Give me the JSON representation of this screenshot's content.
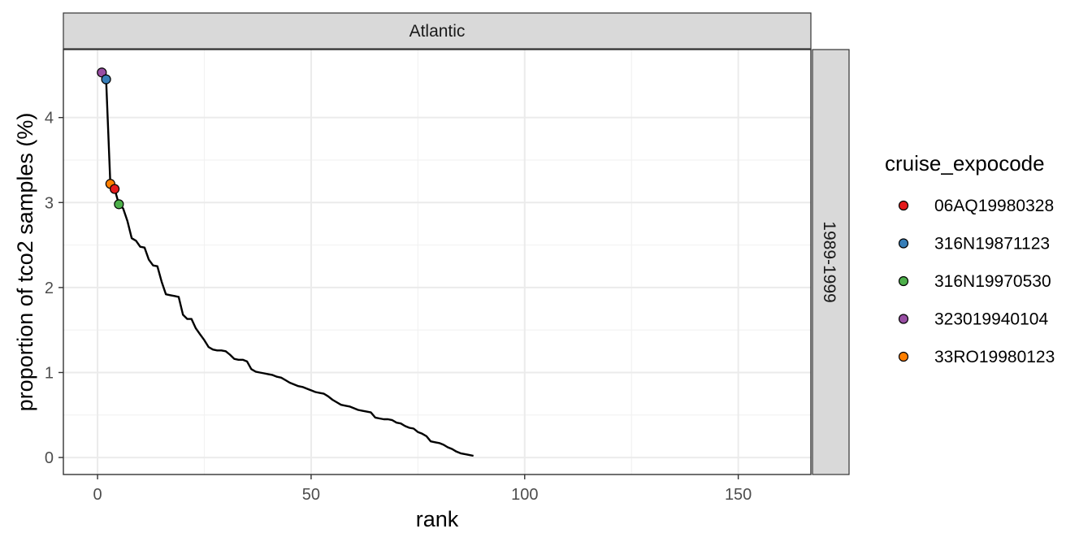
{
  "chart_data": {
    "type": "line",
    "facet": {
      "col_label": "Atlantic",
      "row_label": "1989-1999"
    },
    "xlabel": "rank",
    "ylabel": "proportion of tco2 samples (%)",
    "xlim": [
      -8,
      167
    ],
    "ylim": [
      -0.2,
      4.8
    ],
    "x_ticks": [
      0,
      50,
      100,
      150
    ],
    "y_ticks": [
      0,
      1,
      2,
      3,
      4
    ],
    "grid": true,
    "line": {
      "color": "#000000",
      "points": [
        [
          1,
          4.53
        ],
        [
          2,
          4.45
        ],
        [
          3,
          3.22
        ],
        [
          4,
          3.16
        ],
        [
          5,
          2.98
        ],
        [
          6,
          2.93
        ],
        [
          7,
          2.78
        ],
        [
          8,
          2.58
        ],
        [
          9,
          2.55
        ],
        [
          10,
          2.48
        ],
        [
          11,
          2.47
        ],
        [
          12,
          2.33
        ],
        [
          13,
          2.26
        ],
        [
          14,
          2.25
        ],
        [
          15,
          2.07
        ],
        [
          16,
          1.92
        ],
        [
          17,
          1.91
        ],
        [
          18,
          1.9
        ],
        [
          19,
          1.89
        ],
        [
          20,
          1.68
        ],
        [
          21,
          1.63
        ],
        [
          22,
          1.63
        ],
        [
          23,
          1.52
        ],
        [
          24,
          1.45
        ],
        [
          25,
          1.38
        ],
        [
          26,
          1.3
        ],
        [
          27,
          1.27
        ],
        [
          28,
          1.26
        ],
        [
          29,
          1.26
        ],
        [
          30,
          1.25
        ],
        [
          31,
          1.21
        ],
        [
          32,
          1.16
        ],
        [
          33,
          1.15
        ],
        [
          34,
          1.15
        ],
        [
          35,
          1.13
        ],
        [
          36,
          1.04
        ],
        [
          37,
          1.01
        ],
        [
          38,
          1.0
        ],
        [
          39,
          0.99
        ],
        [
          40,
          0.98
        ],
        [
          41,
          0.97
        ],
        [
          42,
          0.95
        ],
        [
          43,
          0.94
        ],
        [
          44,
          0.91
        ],
        [
          45,
          0.88
        ],
        [
          46,
          0.86
        ],
        [
          47,
          0.84
        ],
        [
          48,
          0.83
        ],
        [
          49,
          0.81
        ],
        [
          50,
          0.79
        ],
        [
          51,
          0.77
        ],
        [
          52,
          0.76
        ],
        [
          53,
          0.75
        ],
        [
          54,
          0.72
        ],
        [
          55,
          0.68
        ],
        [
          56,
          0.65
        ],
        [
          57,
          0.62
        ],
        [
          58,
          0.61
        ],
        [
          59,
          0.6
        ],
        [
          60,
          0.58
        ],
        [
          61,
          0.56
        ],
        [
          62,
          0.55
        ],
        [
          63,
          0.54
        ],
        [
          64,
          0.53
        ],
        [
          65,
          0.47
        ],
        [
          66,
          0.46
        ],
        [
          67,
          0.45
        ],
        [
          68,
          0.45
        ],
        [
          69,
          0.44
        ],
        [
          70,
          0.41
        ],
        [
          71,
          0.4
        ],
        [
          72,
          0.37
        ],
        [
          73,
          0.35
        ],
        [
          74,
          0.34
        ],
        [
          75,
          0.3
        ],
        [
          76,
          0.28
        ],
        [
          77,
          0.25
        ],
        [
          78,
          0.19
        ],
        [
          79,
          0.18
        ],
        [
          80,
          0.17
        ],
        [
          81,
          0.15
        ],
        [
          82,
          0.12
        ],
        [
          83,
          0.1
        ],
        [
          84,
          0.07
        ],
        [
          85,
          0.05
        ],
        [
          86,
          0.04
        ],
        [
          87,
          0.03
        ],
        [
          88,
          0.02
        ]
      ]
    },
    "highlight_points": [
      {
        "cruise": "323019940104",
        "x": 1,
        "y": 4.53
      },
      {
        "cruise": "316N19871123",
        "x": 2,
        "y": 4.45
      },
      {
        "cruise": "33RO19980123",
        "x": 3,
        "y": 3.22
      },
      {
        "cruise": "06AQ19980328",
        "x": 4,
        "y": 3.16
      },
      {
        "cruise": "316N19970530",
        "x": 5,
        "y": 2.98
      }
    ],
    "legend": {
      "title": "cruise_expocode",
      "position": "right",
      "items": [
        {
          "label": "06AQ19980328",
          "color": "#e41a1c"
        },
        {
          "label": "316N19871123",
          "color": "#377eb8"
        },
        {
          "label": "316N19970530",
          "color": "#4daf4a"
        },
        {
          "label": "323019940104",
          "color": "#984ea3"
        },
        {
          "label": "33RO19980123",
          "color": "#ff7f00"
        }
      ]
    }
  }
}
